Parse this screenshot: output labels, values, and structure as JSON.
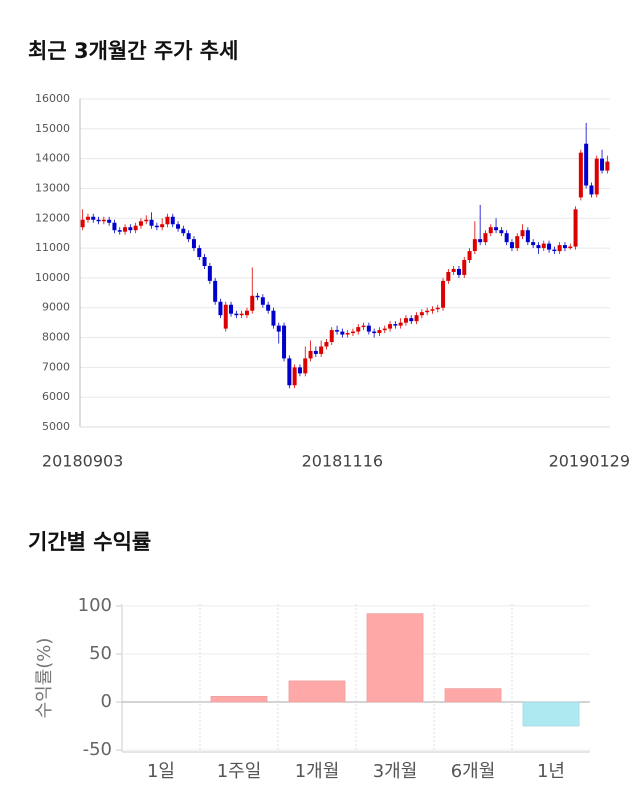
{
  "chart_data": [
    {
      "type": "candlestick",
      "title": "최근 3개월간 주가 추세",
      "categories": [
        "20180903",
        null,
        null,
        null,
        null,
        null,
        null,
        null,
        null,
        null,
        null,
        null,
        null,
        null,
        null,
        null,
        null,
        null,
        null,
        null,
        null,
        null,
        null,
        null,
        null,
        null,
        null,
        null,
        null,
        null,
        null,
        null,
        null,
        null,
        null,
        null,
        null,
        null,
        null,
        null,
        null,
        null,
        null,
        null,
        null,
        null,
        null,
        null,
        null,
        "20181116",
        null,
        null,
        null,
        null,
        null,
        null,
        null,
        null,
        null,
        null,
        null,
        null,
        null,
        null,
        null,
        null,
        null,
        null,
        null,
        null,
        null,
        null,
        null,
        null,
        null,
        null,
        null,
        null,
        null,
        null,
        null,
        null,
        null,
        null,
        null,
        null,
        null,
        null,
        null,
        null,
        null,
        null,
        null,
        null,
        null,
        null,
        null,
        null,
        null,
        "20190129"
      ],
      "open": [
        11700,
        11950,
        12050,
        11950,
        11900,
        11950,
        11850,
        11600,
        11550,
        11700,
        11600,
        11750,
        11900,
        11950,
        11750,
        11700,
        11800,
        12050,
        11800,
        11650,
        11500,
        11300,
        11000,
        10700,
        10400,
        9900,
        9200,
        8300,
        9100,
        8800,
        8750,
        8750,
        8900,
        9400,
        9350,
        9100,
        8900,
        8400,
        8400,
        7300,
        6400,
        7000,
        6800,
        7300,
        7550,
        7450,
        7700,
        7850,
        8250,
        8200,
        8100,
        8150,
        8200,
        8350,
        8400,
        8200,
        8150,
        8250,
        8300,
        8450,
        8400,
        8500,
        8650,
        8550,
        8750,
        8850,
        8900,
        8950,
        9000,
        9900,
        10200,
        10300,
        10100,
        10600,
        10900,
        11300,
        11200,
        11500,
        11700,
        11600,
        11500,
        11200,
        11000,
        11400,
        11600,
        11200,
        11100,
        11000,
        11150,
        10950,
        10900,
        11100,
        11000,
        11050,
        12700,
        14500,
        13100,
        12800,
        14000,
        13600
      ],
      "high": [
        12300,
        12150,
        12150,
        12050,
        12050,
        12050,
        11950,
        11700,
        11800,
        11800,
        11850,
        12000,
        12100,
        12200,
        11850,
        12000,
        12150,
        12150,
        11900,
        11750,
        11600,
        11400,
        11100,
        10800,
        10500,
        10000,
        9300,
        9200,
        9200,
        8900,
        8900,
        9000,
        10350,
        9500,
        9450,
        9200,
        9000,
        8500,
        8500,
        7400,
        7100,
        7100,
        7700,
        7900,
        7700,
        7900,
        7950,
        8350,
        8400,
        8300,
        8250,
        8300,
        8450,
        8500,
        8500,
        8300,
        8350,
        8400,
        8550,
        8550,
        8650,
        8750,
        8750,
        8850,
        8950,
        9000,
        9050,
        9100,
        10000,
        10300,
        10400,
        10400,
        10700,
        11000,
        11900,
        12450,
        11600,
        11800,
        12000,
        11700,
        11600,
        11300,
        11500,
        11800,
        11700,
        11300,
        11200,
        11250,
        11250,
        11050,
        11200,
        11200,
        11150,
        12400,
        14300,
        15200,
        13200,
        14100,
        14300,
        14100
      ],
      "low": [
        11600,
        11850,
        11850,
        11800,
        11800,
        11750,
        11500,
        11450,
        11450,
        11500,
        11500,
        11650,
        11800,
        11650,
        11600,
        11600,
        11700,
        11700,
        11550,
        11400,
        11200,
        10900,
        10600,
        10300,
        9800,
        9100,
        8650,
        8200,
        8700,
        8650,
        8650,
        8650,
        8800,
        9250,
        9000,
        8800,
        8300,
        7800,
        7200,
        6300,
        6300,
        6700,
        6700,
        7200,
        7350,
        7350,
        7600,
        7750,
        8100,
        8000,
        8000,
        8050,
        8100,
        8250,
        8100,
        8000,
        8050,
        8150,
        8200,
        8300,
        8300,
        8400,
        8450,
        8450,
        8650,
        8750,
        8800,
        8850,
        8900,
        9800,
        10100,
        10000,
        10000,
        10500,
        10800,
        11100,
        11100,
        11400,
        11500,
        11400,
        11100,
        10900,
        10900,
        11300,
        11100,
        11000,
        10800,
        10900,
        10850,
        10800,
        10800,
        10900,
        10950,
        10950,
        12600,
        13000,
        12700,
        12700,
        13500,
        13500
      ],
      "close": [
        11950,
        12050,
        11950,
        11900,
        11950,
        11850,
        11600,
        11550,
        11700,
        11600,
        11750,
        11900,
        11950,
        11750,
        11700,
        11800,
        12050,
        11800,
        11650,
        11500,
        11300,
        11000,
        10700,
        10400,
        9900,
        9200,
        8750,
        9100,
        8800,
        8750,
        8800,
        8900,
        9400,
        9350,
        9100,
        8900,
        8400,
        8200,
        7300,
        6400,
        7000,
        6800,
        7300,
        7550,
        7450,
        7700,
        7850,
        8250,
        8200,
        8100,
        8150,
        8200,
        8350,
        8400,
        8200,
        8150,
        8250,
        8300,
        8450,
        8400,
        8500,
        8650,
        8550,
        8750,
        8850,
        8900,
        8950,
        9000,
        9900,
        10200,
        10300,
        10100,
        10600,
        10900,
        11300,
        11200,
        11500,
        11700,
        11600,
        11500,
        11200,
        11000,
        11400,
        11600,
        11200,
        11100,
        11000,
        11150,
        10950,
        10900,
        11100,
        11000,
        11050,
        12300,
        14200,
        13100,
        12800,
        14000,
        13600,
        13900
      ],
      "up_color": "#dd0000",
      "down_color": "#0000cc",
      "ylim": [
        5000,
        16000
      ],
      "yticks": [
        5000,
        6000,
        7000,
        8000,
        9000,
        10000,
        11000,
        12000,
        13000,
        14000,
        15000,
        16000
      ],
      "grid": true
    },
    {
      "type": "bar",
      "title": "기간별 수익률",
      "y_label": "수익률(%)",
      "categories": [
        "1일",
        "1주일",
        "1개월",
        "3개월",
        "6개월",
        "1년"
      ],
      "values": [
        0,
        6,
        22,
        92,
        14,
        -25
      ],
      "positive_color": "#ffa8a8",
      "negative_color": "#aee8f0",
      "ylim": [
        -52,
        102
      ],
      "yticks": [
        -50,
        0,
        50,
        100
      ],
      "grid": true
    }
  ]
}
